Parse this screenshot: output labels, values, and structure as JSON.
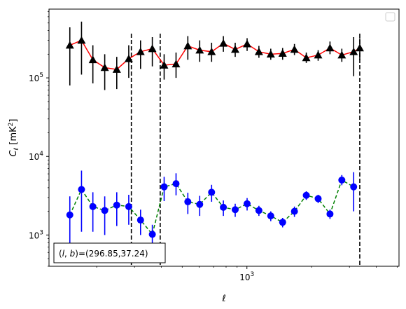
{
  "chart_data": {
    "type": "scatter",
    "xscale": "log",
    "yscale": "log",
    "xlim": [
      120,
      5100
    ],
    "ylim": [
      400,
      750000
    ],
    "xlabel": "ℓ",
    "ylabel": "C_ℓ [mK²]",
    "x_ticks": [
      {
        "value": 1000,
        "label": "10^3"
      }
    ],
    "y_ticks": [
      {
        "value": 1000,
        "label": "10^3"
      },
      {
        "value": 10000,
        "label": "10^4"
      },
      {
        "value": 100000,
        "label": "10^5"
      }
    ],
    "vlines": [
      290,
      395,
      3350
    ],
    "legend": {
      "placement": "top-right",
      "entries": []
    },
    "annotation": {
      "text": "(l, b)=(296.85,37.24)",
      "position": "bottom-left"
    },
    "series": [
      {
        "marker": "triangle",
        "color": "#000000",
        "line_color": "#ff0000",
        "line_style": "solid",
        "points": [
          {
            "x": 150,
            "y": 260000,
            "lo": 80000,
            "hi": 440000
          },
          {
            "x": 170,
            "y": 300000,
            "lo": 110000,
            "hi": 520000
          },
          {
            "x": 192,
            "y": 170000,
            "lo": 85000,
            "hi": 260000
          },
          {
            "x": 218,
            "y": 135000,
            "lo": 70000,
            "hi": 200000
          },
          {
            "x": 248,
            "y": 128000,
            "lo": 72000,
            "hi": 185000
          },
          {
            "x": 282,
            "y": 175000,
            "lo": 100000,
            "hi": 260000
          },
          {
            "x": 320,
            "y": 215000,
            "lo": 130000,
            "hi": 300000
          },
          {
            "x": 363,
            "y": 235000,
            "lo": 140000,
            "hi": 330000
          },
          {
            "x": 412,
            "y": 145000,
            "lo": 95000,
            "hi": 200000
          },
          {
            "x": 468,
            "y": 150000,
            "lo": 100000,
            "hi": 210000
          },
          {
            "x": 531,
            "y": 255000,
            "lo": 170000,
            "hi": 340000
          },
          {
            "x": 603,
            "y": 225000,
            "lo": 160000,
            "hi": 300000
          },
          {
            "x": 685,
            "y": 215000,
            "lo": 160000,
            "hi": 280000
          },
          {
            "x": 777,
            "y": 275000,
            "lo": 215000,
            "hi": 340000
          },
          {
            "x": 882,
            "y": 230000,
            "lo": 185000,
            "hi": 280000
          },
          {
            "x": 1002,
            "y": 270000,
            "lo": 220000,
            "hi": 320000
          },
          {
            "x": 1137,
            "y": 215000,
            "lo": 180000,
            "hi": 255000
          },
          {
            "x": 1291,
            "y": 200000,
            "lo": 170000,
            "hi": 235000
          },
          {
            "x": 1466,
            "y": 205000,
            "lo": 170000,
            "hi": 240000
          },
          {
            "x": 1664,
            "y": 230000,
            "lo": 195000,
            "hi": 270000
          },
          {
            "x": 1889,
            "y": 180000,
            "lo": 155000,
            "hi": 210000
          },
          {
            "x": 2145,
            "y": 195000,
            "lo": 165000,
            "hi": 225000
          },
          {
            "x": 2435,
            "y": 240000,
            "lo": 200000,
            "hi": 290000
          },
          {
            "x": 2764,
            "y": 195000,
            "lo": 160000,
            "hi": 235000
          },
          {
            "x": 3138,
            "y": 215000,
            "lo": 105000,
            "hi": 330000
          },
          {
            "x": 3350,
            "y": 240000,
            "lo": 170000,
            "hi": 320000
          }
        ]
      },
      {
        "marker": "circle",
        "color": "#0000ff",
        "line_color": "#008000",
        "line_style": "dashed",
        "points": [
          {
            "x": 150,
            "y": 1800,
            "lo": 700,
            "hi": 3100
          },
          {
            "x": 170,
            "y": 3800,
            "lo": 1100,
            "hi": 6600
          },
          {
            "x": 192,
            "y": 2300,
            "lo": 1100,
            "hi": 3500
          },
          {
            "x": 218,
            "y": 2050,
            "lo": 1000,
            "hi": 3100
          },
          {
            "x": 248,
            "y": 2400,
            "lo": 1300,
            "hi": 3500
          },
          {
            "x": 282,
            "y": 2300,
            "lo": 1350,
            "hi": 3250
          },
          {
            "x": 320,
            "y": 1550,
            "lo": 1000,
            "hi": 2100
          },
          {
            "x": 363,
            "y": 1020,
            "lo": 700,
            "hi": 1350
          },
          {
            "x": 412,
            "y": 4100,
            "lo": 2700,
            "hi": 5500
          },
          {
            "x": 468,
            "y": 4500,
            "lo": 3200,
            "hi": 6100
          },
          {
            "x": 531,
            "y": 2650,
            "lo": 1850,
            "hi": 3450
          },
          {
            "x": 603,
            "y": 2450,
            "lo": 1750,
            "hi": 3150
          },
          {
            "x": 685,
            "y": 3500,
            "lo": 2650,
            "hi": 4350
          },
          {
            "x": 777,
            "y": 2250,
            "lo": 1750,
            "hi": 2750
          },
          {
            "x": 882,
            "y": 2100,
            "lo": 1700,
            "hi": 2500
          },
          {
            "x": 1002,
            "y": 2500,
            "lo": 2050,
            "hi": 2950
          },
          {
            "x": 1137,
            "y": 2050,
            "lo": 1750,
            "hi": 2350
          },
          {
            "x": 1291,
            "y": 1750,
            "lo": 1500,
            "hi": 2000
          },
          {
            "x": 1466,
            "y": 1450,
            "lo": 1250,
            "hi": 1650
          },
          {
            "x": 1664,
            "y": 2000,
            "lo": 1700,
            "hi": 2300
          },
          {
            "x": 1889,
            "y": 3200,
            "lo": 2800,
            "hi": 3600
          },
          {
            "x": 2145,
            "y": 2900,
            "lo": 2550,
            "hi": 3250
          },
          {
            "x": 2435,
            "y": 1850,
            "lo": 1600,
            "hi": 2100
          },
          {
            "x": 2764,
            "y": 5000,
            "lo": 4300,
            "hi": 5800
          },
          {
            "x": 3138,
            "y": 4100,
            "lo": 2000,
            "hi": 6300
          }
        ]
      }
    ]
  }
}
